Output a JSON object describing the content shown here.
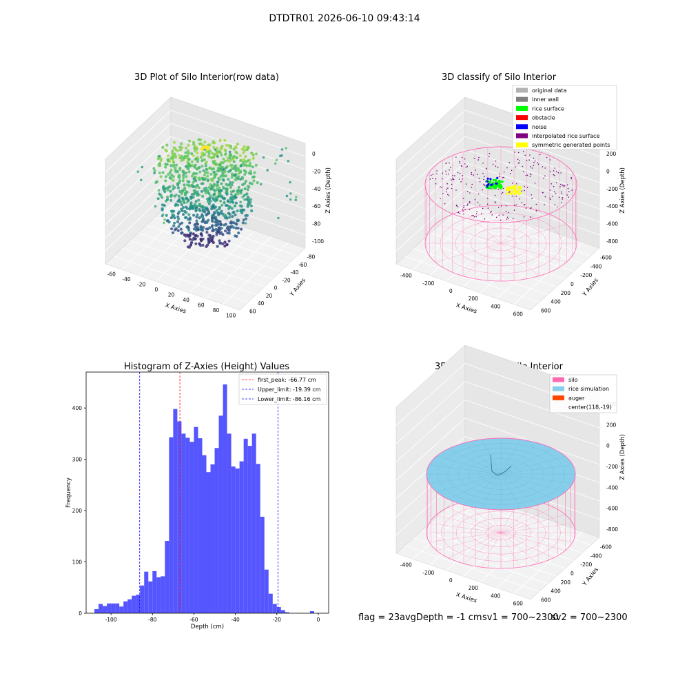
{
  "suptitle": "DTDTR01 2026-06-10 09:43:14",
  "footer": {
    "flag": "flag = 23",
    "avg_depth": "avgDepth = -1 cm",
    "sv1": "sv1 = 700~2300",
    "sv2": "sv2 = 700~2300"
  },
  "colors": {
    "original": "#b3b3b3",
    "inner_wall": "#808080",
    "rice_surface": "#00ff00",
    "obstacle": "#ff0000",
    "noise": "#0000ff",
    "interpolated": "#800080",
    "symmetric": "#ffff00",
    "silo": "#ff69b4",
    "rice_sim": "#87ceeb",
    "auger": "#ff4500",
    "hist_bar": "#4d4dff",
    "peak_line": "#ff0000",
    "limit_line": "#0000ff"
  },
  "chart_data": [
    {
      "type": "scatter",
      "projection": "3d",
      "title": "3D Plot of Silo Interior(row data)",
      "xlabel": "X Axies",
      "ylabel": "Y Axies",
      "zlabel": "Z Axies (Depth)",
      "xticks": [
        "-60",
        "-40",
        "-20",
        "0",
        "20",
        "40",
        "60",
        "80",
        "100"
      ],
      "yticks": [
        "-80",
        "-60",
        "-40",
        "-20",
        "0",
        "20",
        "40",
        "60"
      ],
      "zticks": [
        "0",
        "-20",
        "-40",
        "-60",
        "-80",
        "-100"
      ],
      "colormap": "viridis"
    },
    {
      "type": "scatter",
      "projection": "3d",
      "title": "3D classify of Silo Interior",
      "xlabel": "X Axies",
      "ylabel": "Y Axies",
      "zlabel": "Z Axies (Depth)",
      "xticks": [
        "-400",
        "-200",
        "0",
        "200",
        "400",
        "600"
      ],
      "yticks": [
        "-600",
        "-400",
        "-200",
        "0",
        "200",
        "400",
        "600"
      ],
      "zticks": [
        "200",
        "0",
        "-200",
        "-400",
        "-600",
        "-800"
      ],
      "legend": [
        {
          "label": "original data",
          "color_key": "original"
        },
        {
          "label": "inner wall",
          "color_key": "inner_wall"
        },
        {
          "label": "rice surface",
          "color_key": "rice_surface"
        },
        {
          "label": "obstacle",
          "color_key": "obstacle"
        },
        {
          "label": "noise",
          "color_key": "noise"
        },
        {
          "label": "interpolated rice surface",
          "color_key": "interpolated"
        },
        {
          "label": "symmetric generated points",
          "color_key": "symmetric"
        }
      ],
      "legend_position": "top-right"
    },
    {
      "type": "bar",
      "title": "Histogram of Z-Axies (Height) Values",
      "xlabel": "Depth (cm)",
      "ylabel": "Frequency",
      "xlim": [
        -112,
        5
      ],
      "ylim": [
        0,
        470
      ],
      "xticks": [
        "-100",
        "-80",
        "-60",
        "-40",
        "-20",
        "0"
      ],
      "yticks": [
        "0",
        "100",
        "200",
        "300",
        "400"
      ],
      "bin_width": 2,
      "bins_start": [
        -108,
        -106,
        -104,
        -102,
        -100,
        -98,
        -96,
        -94,
        -92,
        -90,
        -88,
        -86,
        -84,
        -82,
        -80,
        -78,
        -76,
        -74,
        -72,
        -70,
        -68,
        -66,
        -64,
        -62,
        -60,
        -58,
        -56,
        -54,
        -52,
        -50,
        -48,
        -46,
        -44,
        -42,
        -40,
        -38,
        -36,
        -34,
        -32,
        -30,
        -28,
        -26,
        -24,
        -22,
        -20,
        -18,
        -16,
        -14,
        -12,
        -10,
        -8,
        -6,
        -4,
        -2
      ],
      "values": [
        8,
        18,
        14,
        19,
        19,
        19,
        13,
        23,
        27,
        34,
        36,
        54,
        81,
        62,
        82,
        70,
        72,
        141,
        343,
        398,
        374,
        350,
        342,
        334,
        363,
        341,
        308,
        275,
        290,
        322,
        385,
        446,
        350,
        286,
        282,
        296,
        340,
        326,
        350,
        291,
        188,
        85,
        38,
        18,
        12,
        6,
        2,
        0,
        0,
        0,
        0,
        0,
        4,
        0
      ],
      "vlines": [
        {
          "x": -66.77,
          "label": "first_peak: -66.77 cm",
          "color_key": "peak_line"
        },
        {
          "x": -19.39,
          "label": "Upper_limit: -19.39 cm",
          "color_key": "limit_line"
        },
        {
          "x": -86.16,
          "label": "Lower_limit: -86.16 cm",
          "color_key": "limit_line"
        }
      ],
      "legend_position": "top-right"
    },
    {
      "type": "scatter",
      "projection": "3d",
      "title": "3D simulation of Silo Interior",
      "xlabel": "X Axies",
      "ylabel": "Y Axies",
      "zlabel": "Z Axies (Depth)",
      "xticks": [
        "-400",
        "-200",
        "0",
        "200",
        "400",
        "600"
      ],
      "yticks": [
        "-600",
        "-400",
        "-200",
        "0",
        "200",
        "400",
        "600"
      ],
      "zticks": [
        "400",
        "200",
        "0",
        "-200",
        "-400",
        "-600",
        "-800"
      ],
      "legend": [
        {
          "label": "silo",
          "color_key": "silo"
        },
        {
          "label": "rice simulation",
          "color_key": "rice_sim"
        },
        {
          "label": "auger",
          "color_key": "auger"
        },
        {
          "label": "center(118,-19)",
          "color_key": ""
        }
      ],
      "legend_position": "top-right"
    }
  ]
}
